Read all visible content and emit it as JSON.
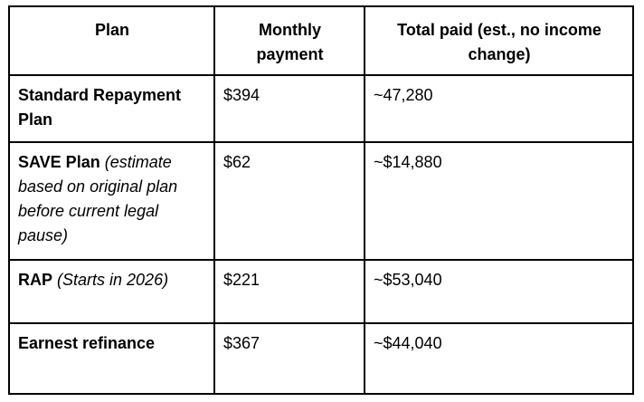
{
  "table": {
    "header": {
      "col_plan": "Plan",
      "col_monthly": "Monthly payment",
      "col_total": "Total paid (est., no income change)"
    },
    "rows": [
      {
        "plan_name": "Standard Repayment Plan",
        "plan_note": "",
        "monthly_payment": "$394",
        "total_paid": "~47,280"
      },
      {
        "plan_name": "SAVE Plan",
        "plan_note": " (estimate based on original plan before current legal pause)",
        "monthly_payment": "$62",
        "total_paid": "~$14,880"
      },
      {
        "plan_name": "RAP",
        "plan_note": " (Starts in 2026)",
        "monthly_payment": "$221",
        "total_paid": "~$53,040"
      },
      {
        "plan_name": "Earnest refinance",
        "plan_note": "",
        "monthly_payment": "$367",
        "total_paid": "~$44,040"
      }
    ],
    "colors": {
      "border": "#000000",
      "text": "#000000",
      "background": "#ffffff"
    }
  }
}
